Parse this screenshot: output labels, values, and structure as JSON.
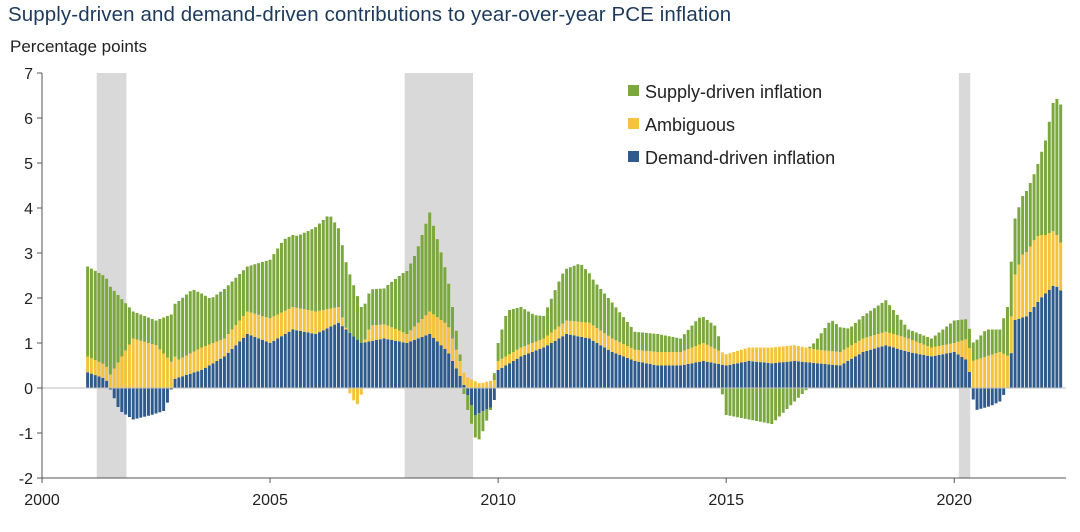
{
  "chart_data": {
    "type": "bar",
    "stacked": true,
    "title": "Supply-driven and demand-driven contributions to year-over-year PCE inflation",
    "ylabel": "Percentage points",
    "xlabel": "",
    "xlim": [
      2000,
      2022.45
    ],
    "ylim": [
      -2,
      7
    ],
    "yticks": [
      -2,
      -1,
      0,
      1,
      2,
      3,
      4,
      5,
      6,
      7
    ],
    "xticks": [
      2000,
      2005,
      2010,
      2015,
      2020
    ],
    "legend_position": "top-right",
    "colors": {
      "supply": "#7ba83c",
      "ambiguous": "#f5c33b",
      "demand": "#2e5b8c",
      "recession": "#d9d9d9"
    },
    "recessions": [
      [
        2001.2,
        2001.85
      ],
      [
        2007.95,
        2009.45
      ],
      [
        2020.1,
        2020.35
      ]
    ],
    "series_order": [
      "demand",
      "ambiguous",
      "supply"
    ],
    "series": [
      {
        "key": "supply",
        "name": "Supply-driven inflation",
        "points": [
          [
            2001.0,
            2.0
          ],
          [
            2001.5,
            1.95
          ],
          [
            2002.0,
            0.6
          ],
          [
            2002.5,
            0.55
          ],
          [
            2003.0,
            1.3
          ],
          [
            2003.3,
            1.4
          ],
          [
            2003.7,
            1.0
          ],
          [
            2004.0,
            1.1
          ],
          [
            2004.5,
            1.0
          ],
          [
            2005.0,
            1.3
          ],
          [
            2005.3,
            1.6
          ],
          [
            2005.6,
            1.6
          ],
          [
            2005.9,
            1.8
          ],
          [
            2006.3,
            2.1
          ],
          [
            2006.7,
            1.4
          ],
          [
            2007.0,
            0.8
          ],
          [
            2007.5,
            0.8
          ],
          [
            2007.9,
            1.3
          ],
          [
            2008.2,
            1.6
          ],
          [
            2008.5,
            2.2
          ],
          [
            2008.75,
            1.5
          ],
          [
            2009.0,
            0.7
          ],
          [
            2009.3,
            -0.3
          ],
          [
            2009.6,
            -0.6
          ],
          [
            2009.9,
            0.1
          ],
          [
            2010.0,
            0.4
          ],
          [
            2010.2,
            1.0
          ],
          [
            2010.5,
            0.9
          ],
          [
            2010.8,
            0.6
          ],
          [
            2011.0,
            0.5
          ],
          [
            2011.4,
            1.1
          ],
          [
            2011.8,
            1.3
          ],
          [
            2012.1,
            1.0
          ],
          [
            2012.5,
            0.8
          ],
          [
            2013.0,
            0.4
          ],
          [
            2013.5,
            0.4
          ],
          [
            2014.0,
            0.3
          ],
          [
            2014.4,
            0.6
          ],
          [
            2014.8,
            0.5
          ],
          [
            2015.0,
            -0.6
          ],
          [
            2015.5,
            -0.7
          ],
          [
            2016.0,
            -0.8
          ],
          [
            2016.5,
            -0.3
          ],
          [
            2016.9,
            0.1
          ],
          [
            2017.3,
            0.7
          ],
          [
            2017.7,
            0.4
          ],
          [
            2018.0,
            0.5
          ],
          [
            2018.5,
            0.7
          ],
          [
            2019.0,
            0.2
          ],
          [
            2019.5,
            0.2
          ],
          [
            2020.0,
            0.5
          ],
          [
            2020.45,
            0.4
          ],
          [
            2020.7,
            0.6
          ],
          [
            2021.0,
            0.5
          ],
          [
            2021.2,
            1.2
          ],
          [
            2021.5,
            1.3
          ],
          [
            2021.8,
            1.5
          ],
          [
            2022.0,
            2.1
          ],
          [
            2022.2,
            3.0
          ],
          [
            2022.4,
            3.1
          ]
        ]
      },
      {
        "key": "ambiguous",
        "name": "Ambiguous",
        "points": [
          [
            2001.0,
            0.35
          ],
          [
            2001.5,
            0.3
          ],
          [
            2002.0,
            1.1
          ],
          [
            2002.5,
            0.95
          ],
          [
            2003.0,
            0.4
          ],
          [
            2003.5,
            0.5
          ],
          [
            2004.0,
            0.4
          ],
          [
            2004.5,
            0.5
          ],
          [
            2005.0,
            0.55
          ],
          [
            2005.5,
            0.5
          ],
          [
            2006.0,
            0.5
          ],
          [
            2006.5,
            0.35
          ],
          [
            2006.9,
            -0.4
          ],
          [
            2007.2,
            0.35
          ],
          [
            2007.6,
            0.3
          ],
          [
            2008.0,
            0.2
          ],
          [
            2008.5,
            0.5
          ],
          [
            2008.9,
            0.6
          ],
          [
            2009.2,
            0.3
          ],
          [
            2009.6,
            0.1
          ],
          [
            2010.0,
            0.2
          ],
          [
            2010.5,
            0.2
          ],
          [
            2011.0,
            0.2
          ],
          [
            2011.5,
            0.3
          ],
          [
            2012.0,
            0.35
          ],
          [
            2012.5,
            0.3
          ],
          [
            2013.0,
            0.25
          ],
          [
            2013.5,
            0.3
          ],
          [
            2014.0,
            0.3
          ],
          [
            2014.5,
            0.4
          ],
          [
            2015.0,
            0.25
          ],
          [
            2015.5,
            0.3
          ],
          [
            2016.0,
            0.35
          ],
          [
            2016.5,
            0.35
          ],
          [
            2017.0,
            0.3
          ],
          [
            2017.5,
            0.3
          ],
          [
            2018.0,
            0.3
          ],
          [
            2018.5,
            0.3
          ],
          [
            2019.0,
            0.3
          ],
          [
            2019.5,
            0.2
          ],
          [
            2020.0,
            0.2
          ],
          [
            2020.4,
            0.6
          ],
          [
            2020.7,
            0.7
          ],
          [
            2021.0,
            0.8
          ],
          [
            2021.2,
            0.7
          ],
          [
            2021.5,
            1.4
          ],
          [
            2021.8,
            1.5
          ],
          [
            2022.0,
            1.3
          ],
          [
            2022.2,
            1.2
          ],
          [
            2022.4,
            1.0
          ]
        ]
      },
      {
        "key": "demand",
        "name": "Demand-driven inflation",
        "points": [
          [
            2001.0,
            0.35
          ],
          [
            2001.4,
            0.2
          ],
          [
            2001.7,
            -0.5
          ],
          [
            2002.0,
            -0.7
          ],
          [
            2002.4,
            -0.6
          ],
          [
            2002.7,
            -0.5
          ],
          [
            2002.9,
            0.2
          ],
          [
            2003.5,
            0.4
          ],
          [
            2004.0,
            0.7
          ],
          [
            2004.5,
            1.2
          ],
          [
            2005.0,
            1.0
          ],
          [
            2005.5,
            1.3
          ],
          [
            2006.0,
            1.2
          ],
          [
            2006.5,
            1.45
          ],
          [
            2007.0,
            1.0
          ],
          [
            2007.5,
            1.1
          ],
          [
            2008.0,
            1.0
          ],
          [
            2008.5,
            1.2
          ],
          [
            2008.9,
            0.8
          ],
          [
            2009.2,
            0.2
          ],
          [
            2009.5,
            -0.6
          ],
          [
            2009.9,
            -0.4
          ],
          [
            2010.0,
            0.4
          ],
          [
            2010.5,
            0.7
          ],
          [
            2011.0,
            0.9
          ],
          [
            2011.5,
            1.2
          ],
          [
            2012.0,
            1.1
          ],
          [
            2012.5,
            0.8
          ],
          [
            2013.0,
            0.6
          ],
          [
            2013.5,
            0.5
          ],
          [
            2014.0,
            0.5
          ],
          [
            2014.5,
            0.6
          ],
          [
            2015.0,
            0.5
          ],
          [
            2015.5,
            0.6
          ],
          [
            2016.0,
            0.55
          ],
          [
            2016.5,
            0.6
          ],
          [
            2017.0,
            0.55
          ],
          [
            2017.5,
            0.5
          ],
          [
            2018.0,
            0.8
          ],
          [
            2018.5,
            0.95
          ],
          [
            2019.0,
            0.8
          ],
          [
            2019.5,
            0.7
          ],
          [
            2020.0,
            0.8
          ],
          [
            2020.3,
            0.6
          ],
          [
            2020.45,
            -0.5
          ],
          [
            2020.8,
            -0.4
          ],
          [
            2021.0,
            -0.3
          ],
          [
            2021.2,
            0.05
          ],
          [
            2021.3,
            1.5
          ],
          [
            2021.6,
            1.6
          ],
          [
            2021.9,
            2.0
          ],
          [
            2022.2,
            2.3
          ],
          [
            2022.4,
            2.1
          ]
        ]
      }
    ],
    "legend": [
      {
        "key": "supply",
        "label": "Supply-driven inflation"
      },
      {
        "key": "ambiguous",
        "label": "Ambiguous"
      },
      {
        "key": "demand",
        "label": "Demand-driven inflation"
      }
    ]
  }
}
